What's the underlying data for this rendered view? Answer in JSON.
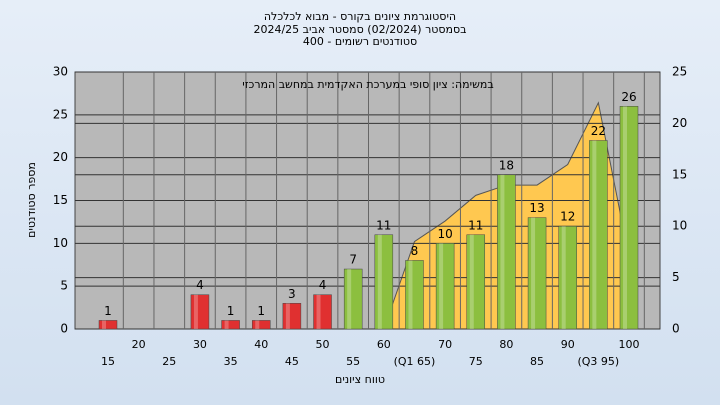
{
  "chart_data": {
    "type": "bar",
    "title": "היסטוגרמת ציונים בקורס - מבוא לכלכלה",
    "subtitle": "בסמסטר  (02/2024)  סמסטר אביב 2024/25",
    "subtitle2": "סטודנטים רשומים - 400",
    "annotation": "במשימה: ציון סופי במערכת האקדמית במחשב המרכזי",
    "x_label": "טווח ציונים",
    "y_label": "מספר סטודנטים",
    "categories": [
      "15",
      "20",
      "25",
      "30",
      "35",
      "40",
      "45",
      "50",
      "55",
      "60",
      "(Q1 65)",
      "70",
      "75",
      "80",
      "85",
      "90",
      "(Q3 95)",
      "100"
    ],
    "values": [
      1,
      0,
      0,
      4,
      1,
      1,
      3,
      4,
      7,
      11,
      8,
      10,
      11,
      18,
      13,
      12,
      22,
      26
    ],
    "colors": [
      "#e03030",
      "#e03030",
      "#e03030",
      "#e03030",
      "#e03030",
      "#e03030",
      "#e03030",
      "#e03030",
      "#8cbf3f",
      "#8cbf3f",
      "#8cbf3f",
      "#8cbf3f",
      "#8cbf3f",
      "#8cbf3f",
      "#8cbf3f",
      "#8cbf3f",
      "#8cbf3f",
      "#8cbf3f"
    ],
    "area": {
      "axis": "y2",
      "color": "#ffc850",
      "values": [
        null,
        null,
        null,
        null,
        null,
        null,
        null,
        null,
        null,
        0,
        8.5,
        10.5,
        13,
        14,
        14,
        16,
        22,
        7
      ]
    },
    "ylim": [
      0,
      30
    ],
    "yticks": [
      0,
      5,
      10,
      15,
      20,
      25,
      30
    ],
    "y2lim": [
      0,
      25
    ],
    "y2ticks": [
      0,
      5,
      10,
      15,
      20,
      25
    ],
    "grid": true
  }
}
